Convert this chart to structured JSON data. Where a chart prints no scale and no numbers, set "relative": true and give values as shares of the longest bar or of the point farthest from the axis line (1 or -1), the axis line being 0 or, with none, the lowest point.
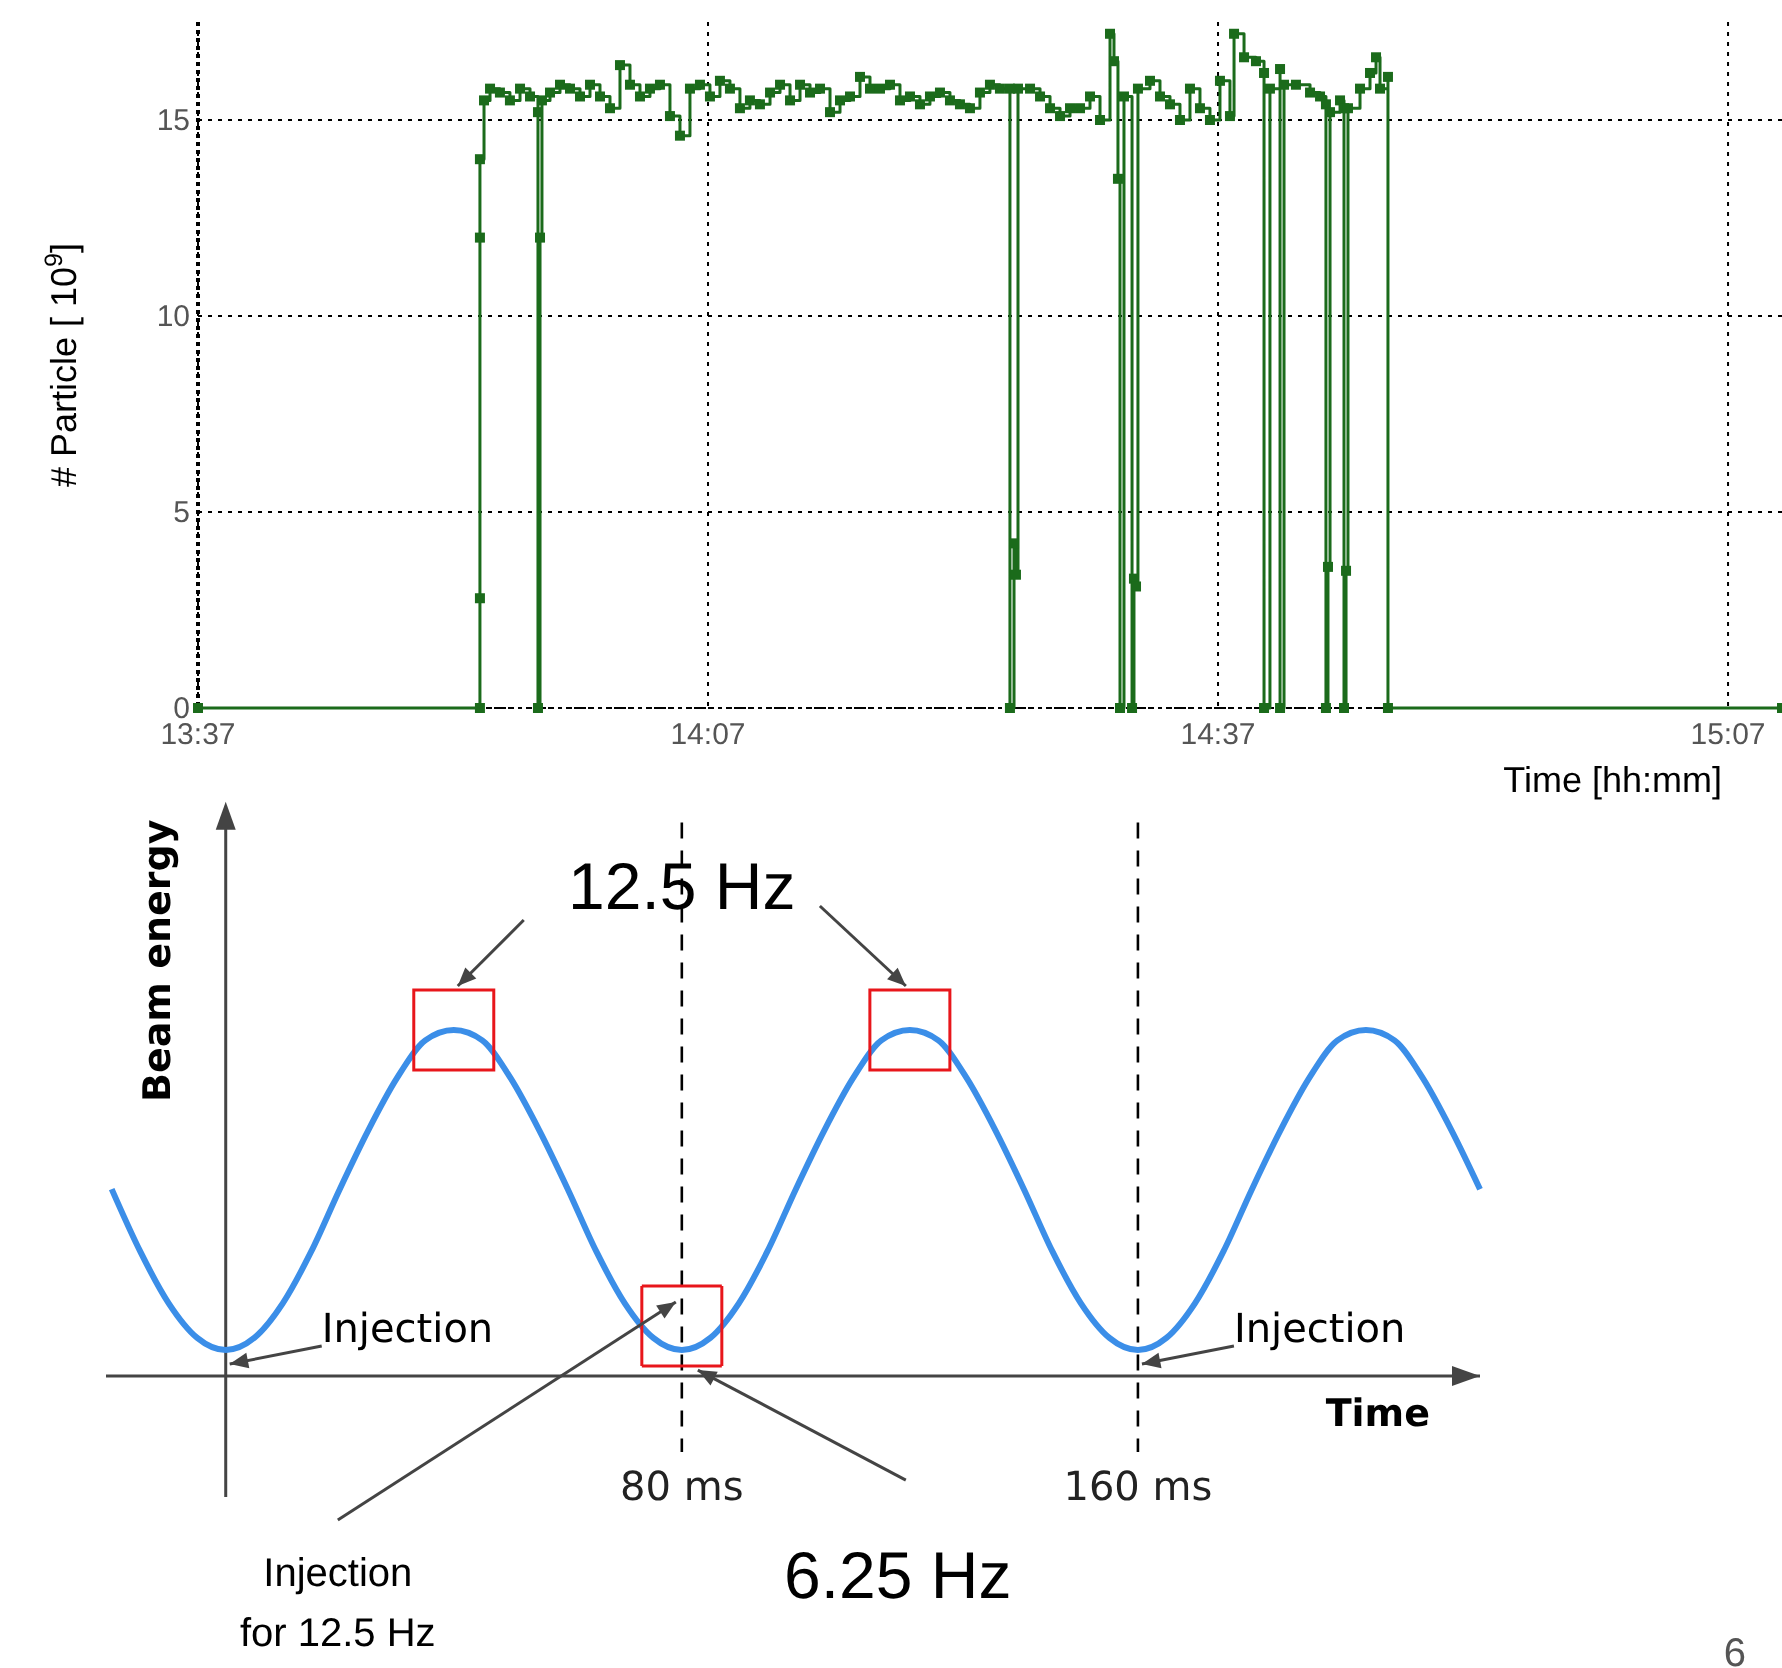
{
  "chart_data": [
    {
      "type": "step",
      "ylabel": "# Particle [ 10$^{9}$]",
      "xlabel": "Time [hh:mm]",
      "xlim": [
        13.6167,
        15.1696
      ],
      "ylim": [
        0,
        17.5
      ],
      "xticks": [
        {
          "value": 13.6167,
          "label": "13:37"
        },
        {
          "value": 14.1167,
          "label": "14:07"
        },
        {
          "value": 14.6167,
          "label": "14:37"
        },
        {
          "value": 15.1167,
          "label": "15:07"
        }
      ],
      "yticks": [
        0,
        5,
        10,
        15
      ],
      "grid": true,
      "marker": "square",
      "line_style": "solid",
      "series": [
        {
          "color": "#1b6b1b",
          "x": [
            13.6167,
            13.8931,
            13.8931,
            13.8931,
            13.8931,
            13.8971,
            13.903,
            13.9127,
            13.9225,
            13.9324,
            13.9422,
            13.95,
            13.95,
            13.952,
            13.9539,
            13.9618,
            13.9716,
            13.9814,
            13.9912,
            14.001,
            14.0108,
            14.0206,
            14.0304,
            14.0402,
            14.05,
            14.0598,
            14.0696,
            14.0794,
            14.0892,
            14.099,
            14.1088,
            14.1186,
            14.1284,
            14.1382,
            14.148,
            14.1578,
            14.1676,
            14.1775,
            14.1873,
            14.1971,
            14.2069,
            14.2167,
            14.2265,
            14.2363,
            14.2461,
            14.2559,
            14.2657,
            14.2755,
            14.2853,
            14.2951,
            14.3049,
            14.3147,
            14.3245,
            14.3343,
            14.3441,
            14.3539,
            14.3637,
            14.3735,
            14.3833,
            14.3931,
            14.4029,
            14.4127,
            14.4127,
            14.4167,
            14.4186,
            14.4206,
            14.4324,
            14.4422,
            14.452,
            14.4618,
            14.4716,
            14.4814,
            14.4912,
            14.501,
            14.5108,
            14.5147,
            14.5186,
            14.5206,
            14.5245,
            14.5324,
            14.5343,
            14.5363,
            14.5382,
            14.55,
            14.5598,
            14.5696,
            14.5794,
            14.5892,
            14.599,
            14.6088,
            14.6186,
            14.6284,
            14.6324,
            14.6422,
            14.6539,
            14.6618,
            14.6618,
            14.6676,
            14.6775,
            14.6775,
            14.6814,
            14.6931,
            14.7069,
            14.7167,
            14.7225,
            14.7225,
            14.7245,
            14.7265,
            14.7363,
            14.7402,
            14.7402,
            14.7422,
            14.7441,
            14.7559,
            14.7657,
            14.7716,
            14.7755,
            14.7833,
            14.7833,
            15.1696
          ],
          "values": [
            0,
            0,
            2.8,
            12,
            14,
            15.5,
            15.8,
            15.7,
            15.5,
            15.8,
            15.6,
            15.2,
            0,
            12,
            15.5,
            15.7,
            15.9,
            15.8,
            15.6,
            15.9,
            15.6,
            15.3,
            16.4,
            15.9,
            15.6,
            15.8,
            15.9,
            15.1,
            14.6,
            15.8,
            15.9,
            15.6,
            16,
            15.8,
            15.3,
            15.5,
            15.4,
            15.7,
            15.9,
            15.5,
            15.9,
            15.7,
            15.8,
            15.2,
            15.5,
            15.6,
            16.1,
            15.8,
            15.8,
            15.9,
            15.5,
            15.6,
            15.4,
            15.6,
            15.7,
            15.5,
            15.4,
            15.3,
            15.7,
            15.9,
            15.8,
            15.8,
            0,
            4.2,
            3.4,
            15.8,
            15.8,
            15.6,
            15.3,
            15.1,
            15.3,
            15.3,
            15.6,
            15,
            17.2,
            16.5,
            13.5,
            0,
            15.6,
            0,
            3.3,
            3.1,
            15.8,
            16,
            15.6,
            15.4,
            15,
            15.8,
            15.3,
            15,
            16,
            15.1,
            17.2,
            16.6,
            16.5,
            16.2,
            0,
            15.8,
            16.3,
            0,
            15.9,
            15.9,
            15.7,
            15.6,
            15.4,
            0,
            3.6,
            15.2,
            15.5,
            15.3,
            0,
            3.5,
            15.3,
            15.8,
            16.2,
            16.6,
            15.8,
            16.1,
            0,
            0
          ]
        }
      ]
    },
    {
      "type": "line",
      "relative": true,
      "ylabel": "Beam energy",
      "xlabel": "Time",
      "xlim": [
        -21,
        220
      ],
      "xticks": [
        {
          "value": 80,
          "label": "80 ms"
        },
        {
          "value": 160,
          "label": "160 ms"
        }
      ],
      "marker": "none",
      "line_style": "solid",
      "ref_lines": [
        {
          "axis": "x",
          "value": 80,
          "color": "#000000",
          "line_style": "dashed"
        },
        {
          "axis": "x",
          "value": 160,
          "color": "#000000",
          "line_style": "dashed"
        }
      ],
      "annotations": [
        "12.5 Hz",
        "6.25 Hz",
        "Injection for 12.5 Hz",
        {
          "text": "Injection",
          "x": 0,
          "y": 0.075
        },
        {
          "text": "Injection",
          "x": 160,
          "y": 0.075
        },
        "6"
      ],
      "series": [
        {
          "color": "#3b8ee8",
          "x": [
            -20,
            -15,
            -10,
            -5,
            0,
            5,
            10,
            15,
            20,
            25,
            30,
            35,
            40,
            45,
            50,
            55,
            60,
            65,
            70,
            75,
            80,
            85,
            90,
            95,
            100,
            105,
            110,
            115,
            120,
            125,
            130,
            135,
            140,
            145,
            150,
            155,
            160,
            165,
            170,
            175,
            180,
            185,
            190,
            195,
            200,
            205,
            210,
            215,
            220
          ],
          "values": [
            0.54,
            0.36,
            0.21,
            0.11,
            0.075,
            0.11,
            0.21,
            0.36,
            0.54,
            0.71,
            0.86,
            0.97,
            1,
            0.97,
            0.86,
            0.71,
            0.54,
            0.36,
            0.21,
            0.11,
            0.075,
            0.11,
            0.21,
            0.36,
            0.54,
            0.71,
            0.86,
            0.97,
            1,
            0.97,
            0.86,
            0.71,
            0.54,
            0.36,
            0.21,
            0.11,
            0.075,
            0.11,
            0.21,
            0.36,
            0.54,
            0.71,
            0.86,
            0.97,
            1,
            0.97,
            0.86,
            0.71,
            0.54
          ]
        }
      ]
    }
  ]
}
